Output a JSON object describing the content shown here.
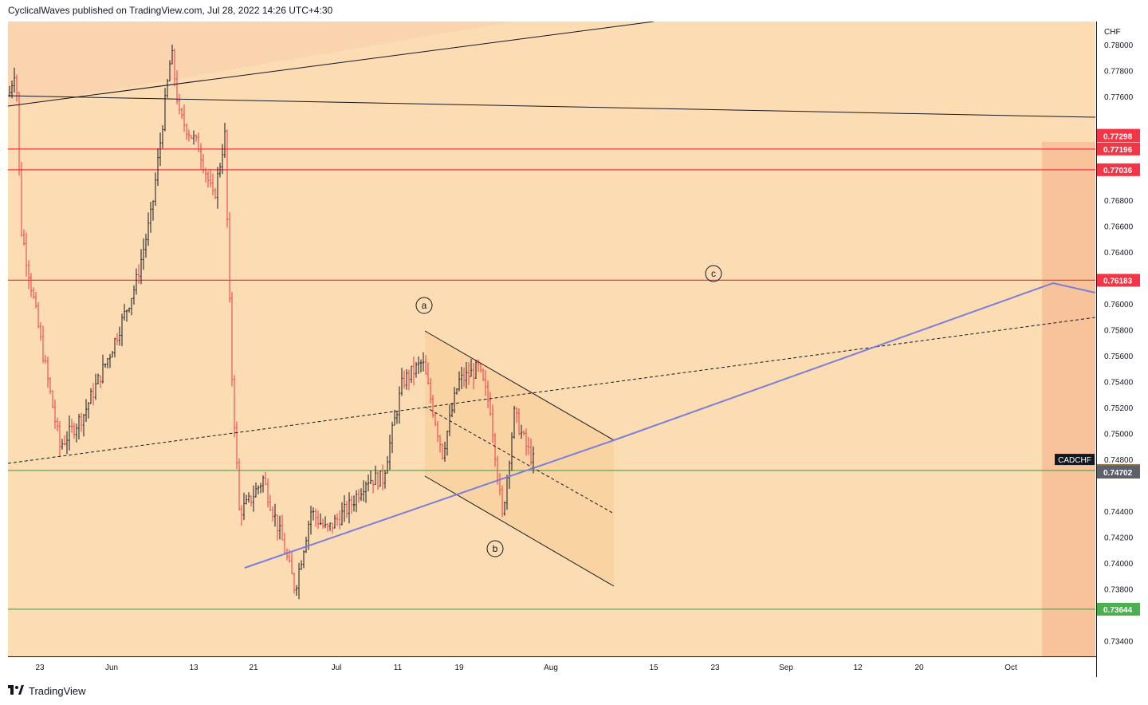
{
  "header": {
    "text": "CyclicalWaves published on TradingView.com, Jul 28, 2022 14:26 UTC+4:30"
  },
  "footer": {
    "logo_icon": "tradingview-logo-icon",
    "brand": "TradingView"
  },
  "colors": {
    "background": "#fbdcb3",
    "candle_up": "#131722",
    "candle_down": "#f23645",
    "resistance": "#f23645",
    "support": "#4caf50",
    "trend": "#7b7fd9"
  },
  "chart_data": {
    "type": "candlestick",
    "symbol": "CADCHF",
    "currency": "CHF",
    "x_ticks": [
      "23",
      "Jun",
      "13",
      "21",
      "Jul",
      "11",
      "19",
      "Aug",
      "15",
      "23",
      "Sep",
      "12",
      "20",
      "Oct"
    ],
    "y_ticks": [
      "0.78000",
      "0.77800",
      "0.77600",
      "0.76800",
      "0.76600",
      "0.76400",
      "0.76000",
      "0.75800",
      "0.75600",
      "0.75400",
      "0.75200",
      "0.75000",
      "0.74800",
      "0.74400",
      "0.74200",
      "0.74000",
      "0.73800",
      "0.73400"
    ],
    "ylim": [
      0.7328,
      0.7818
    ],
    "horizontal_levels": [
      {
        "value": 0.77196,
        "label": "0.77196",
        "color": "#f23645"
      },
      {
        "value": 0.77036,
        "label": "0.77036",
        "color": "#f23645"
      },
      {
        "value": 0.76183,
        "label": "0.76183",
        "color": "#f23645"
      },
      {
        "value": 0.74715,
        "label": "0.74715",
        "color": "#4caf50"
      },
      {
        "value": 0.73644,
        "label": "0.73644",
        "color": "#4caf50"
      }
    ],
    "price_tags": [
      {
        "value": 0.77302,
        "label": "0.77302",
        "color": "#f23645"
      },
      {
        "value": 0.77298,
        "label": "0.77298",
        "color": "#f23645"
      },
      {
        "value": 0.74711,
        "label": "0.74711",
        "color": "#f23645"
      },
      {
        "value": 0.74702,
        "label": "0.74702",
        "color": "#5d606b"
      }
    ],
    "symbol_tag": {
      "value": 0.748,
      "label": "CADCHF"
    },
    "wave_labels": [
      "a",
      "b",
      "c"
    ]
  }
}
